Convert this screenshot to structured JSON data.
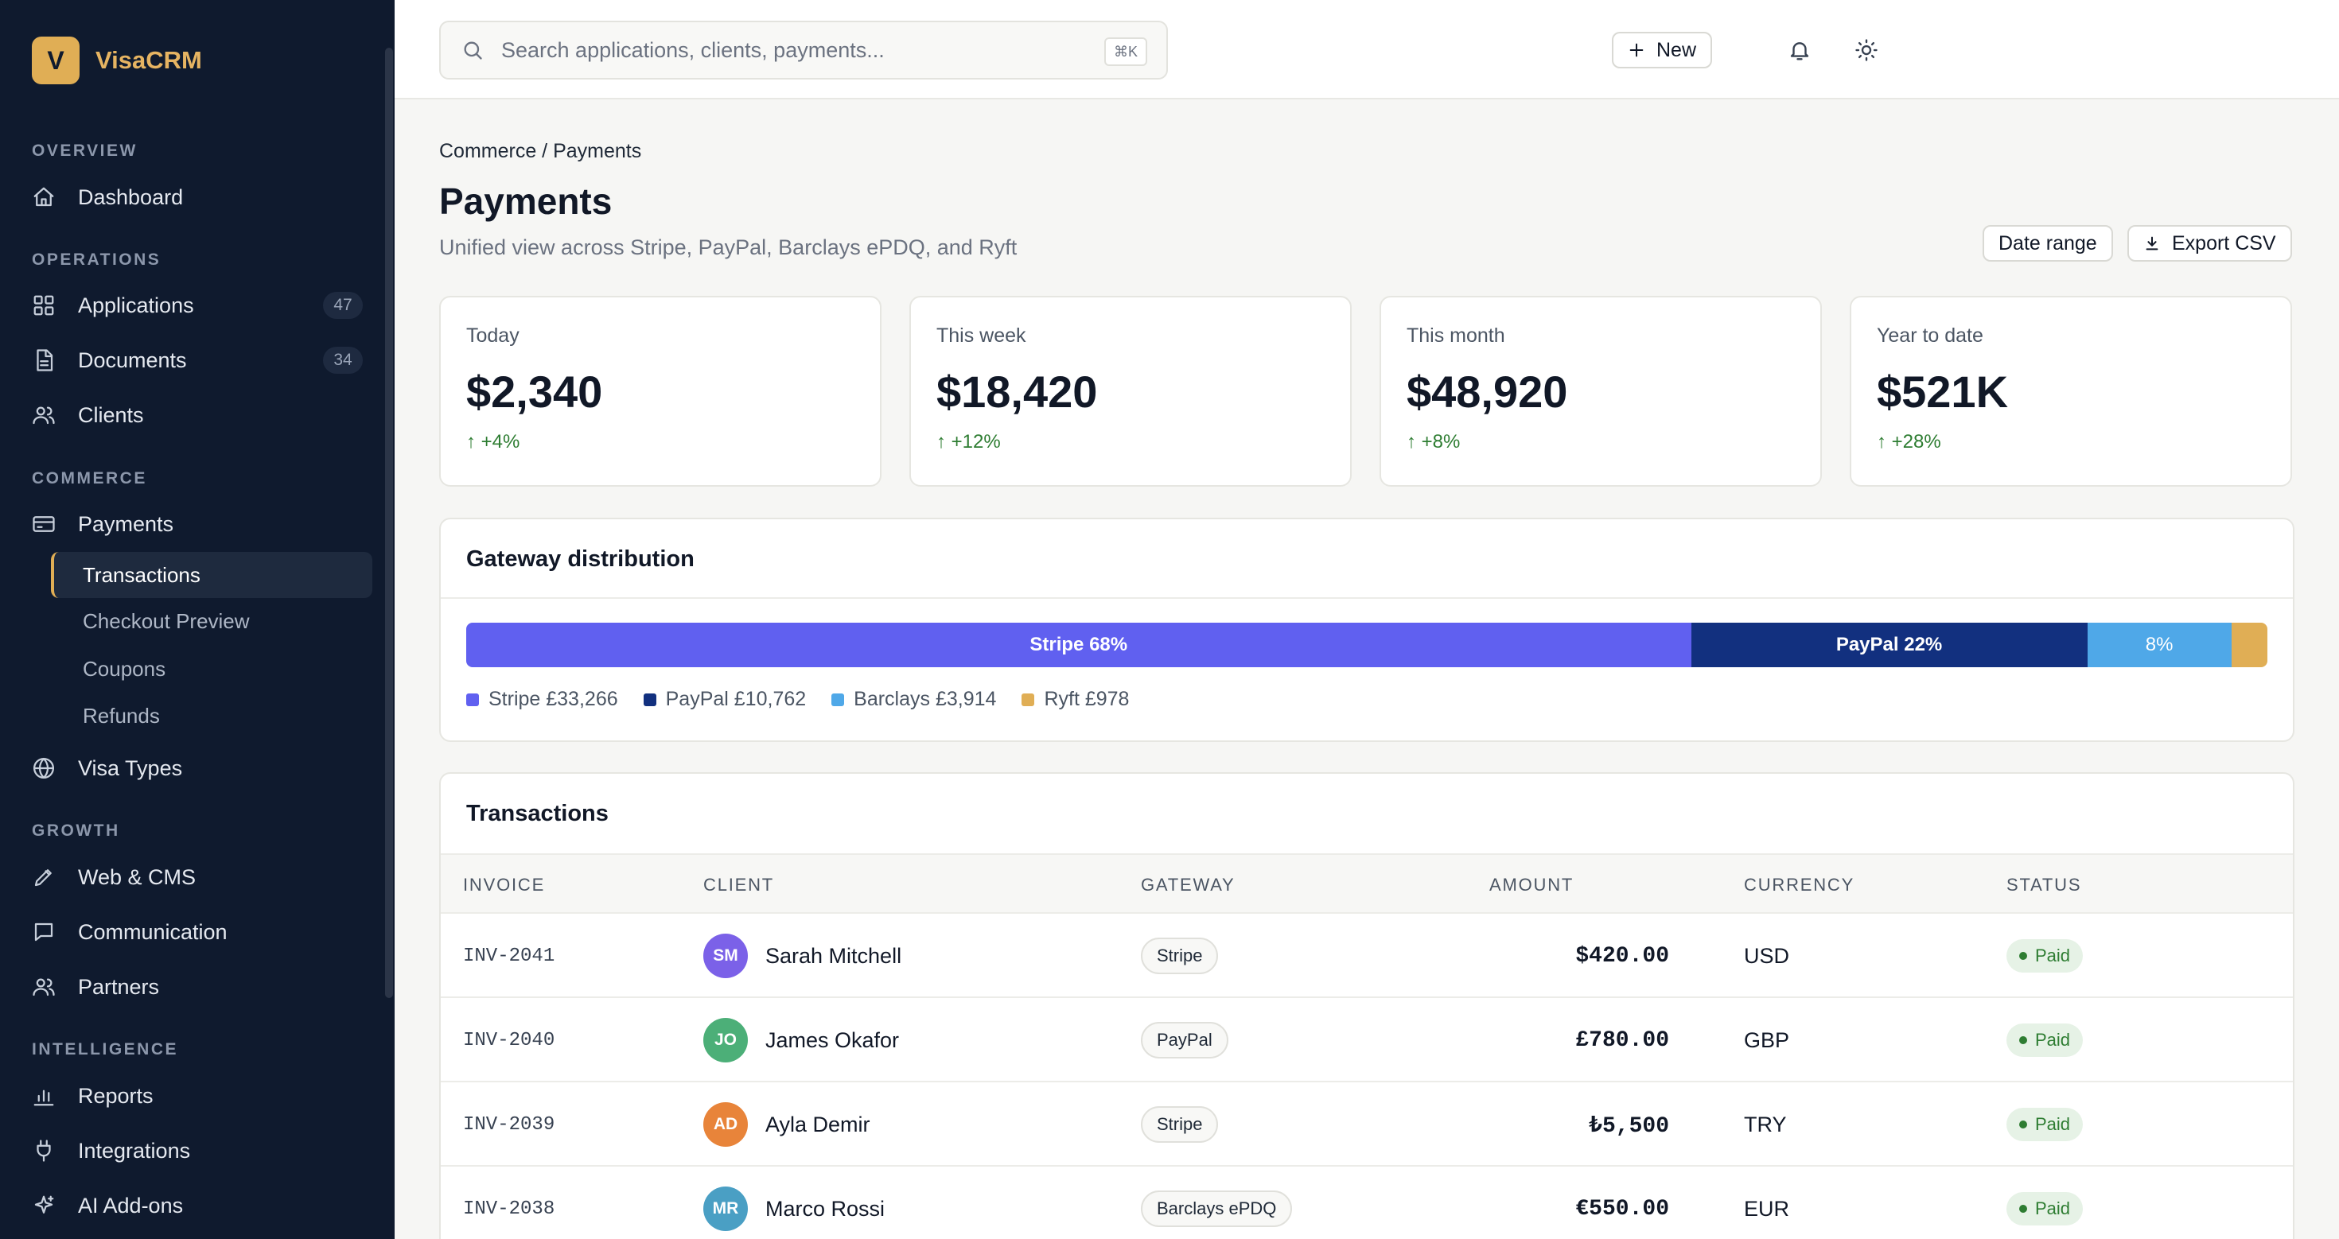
{
  "brand": {
    "logo_letter": "V",
    "name": "VisaCRM"
  },
  "sidebar": {
    "sections": {
      "overview": "OVERVIEW",
      "operations": "OPERATIONS",
      "commerce": "COMMERCE",
      "growth": "GROWTH",
      "intelligence": "INTELLIGENCE"
    },
    "items": {
      "dashboard": {
        "label": "Dashboard",
        "icon": "home-icon"
      },
      "applications": {
        "label": "Applications",
        "badge": "47",
        "icon": "grid-icon"
      },
      "documents": {
        "label": "Documents",
        "badge": "34",
        "icon": "document-icon"
      },
      "clients": {
        "label": "Clients",
        "icon": "users-icon"
      },
      "payments": {
        "label": "Payments",
        "icon": "credit-card-icon"
      },
      "visa_types": {
        "label": "Visa Types",
        "icon": "globe-icon"
      },
      "web_cms": {
        "label": "Web & CMS",
        "icon": "pencil-icon"
      },
      "communication": {
        "label": "Communication",
        "icon": "message-icon"
      },
      "partners": {
        "label": "Partners",
        "icon": "users-icon"
      },
      "reports": {
        "label": "Reports",
        "icon": "bar-chart-icon"
      },
      "integrations": {
        "label": "Integrations",
        "icon": "plug-icon"
      },
      "ai_addons": {
        "label": "AI Add-ons",
        "icon": "sparkle-icon"
      }
    },
    "payments_sub": {
      "transactions": "Transactions",
      "checkout_preview": "Checkout Preview",
      "coupons": "Coupons",
      "refunds": "Refunds"
    }
  },
  "topbar": {
    "search_placeholder": "Search applications, clients, payments...",
    "search_shortcut": "⌘K",
    "new_label": "New"
  },
  "page": {
    "breadcrumb": "Commerce / Payments",
    "title": "Payments",
    "subtitle": "Unified view across Stripe, PayPal, Barclays ePDQ, and Ryft",
    "date_range_label": "Date range",
    "export_label": "Export CSV"
  },
  "stats": [
    {
      "label": "Today",
      "value": "$2,340",
      "delta": "↑ +4%"
    },
    {
      "label": "This week",
      "value": "$18,420",
      "delta": "↑ +12%"
    },
    {
      "label": "This month",
      "value": "$48,920",
      "delta": "↑ +8%"
    },
    {
      "label": "Year to date",
      "value": "$521K",
      "delta": "↑ +28%"
    }
  ],
  "gateway_distribution": {
    "title": "Gateway distribution",
    "segments": [
      {
        "name": "Stripe",
        "label": "Stripe 68%",
        "share": 0.68,
        "color": "#6060f0"
      },
      {
        "name": "PayPal",
        "label": "PayPal 22%",
        "share": 0.22,
        "color": "#12307f"
      },
      {
        "name": "Barclays",
        "label": "8%",
        "share": 0.08,
        "color": "#4fa8e8"
      },
      {
        "name": "Ryft",
        "label": "",
        "share": 0.02,
        "color": "#e0ae55"
      }
    ],
    "legend": [
      {
        "text": "Stripe £33,266",
        "color": "#6060f0"
      },
      {
        "text": "PayPal £10,762",
        "color": "#12307f"
      },
      {
        "text": "Barclays £3,914",
        "color": "#4fa8e8"
      },
      {
        "text": "Ryft £978",
        "color": "#e0ae55"
      }
    ]
  },
  "transactions": {
    "title": "Transactions",
    "columns": {
      "invoice": "INVOICE",
      "client": "CLIENT",
      "gateway": "GATEWAY",
      "amount": "AMOUNT",
      "currency": "CURRENCY",
      "status": "STATUS"
    },
    "rows": [
      {
        "invoice": "INV-2041",
        "initials": "SM",
        "avatar_color": "#7b61e8",
        "client": "Sarah Mitchell",
        "gateway": "Stripe",
        "amount": "$420.00",
        "currency": "USD",
        "status": "Paid"
      },
      {
        "invoice": "INV-2040",
        "initials": "JO",
        "avatar_color": "#4caf78",
        "client": "James Okafor",
        "gateway": "PayPal",
        "amount": "£780.00",
        "currency": "GBP",
        "status": "Paid"
      },
      {
        "invoice": "INV-2039",
        "initials": "AD",
        "avatar_color": "#e8843a",
        "client": "Ayla Demir",
        "gateway": "Stripe",
        "amount": "₺5,500",
        "currency": "TRY",
        "status": "Paid"
      },
      {
        "invoice": "INV-2038",
        "initials": "MR",
        "avatar_color": "#4a9fc4",
        "client": "Marco Rossi",
        "gateway": "Barclays ePDQ",
        "amount": "€550.00",
        "currency": "EUR",
        "status": "Paid"
      }
    ]
  }
}
